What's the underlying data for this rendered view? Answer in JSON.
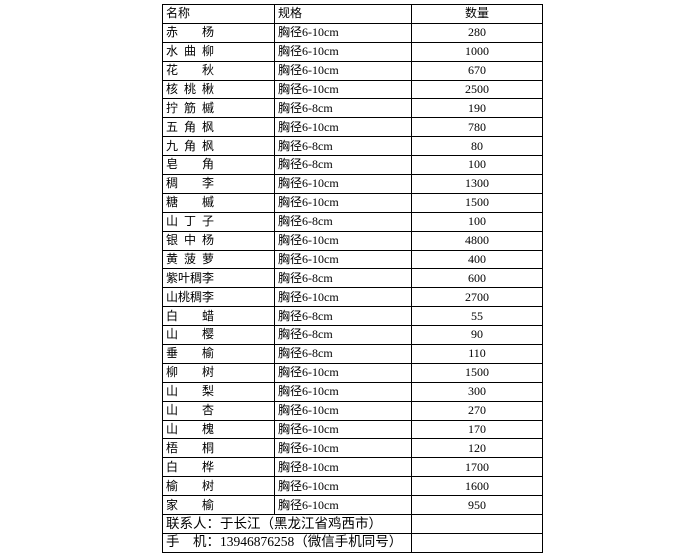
{
  "table": {
    "headers": {
      "name": "名称",
      "spec": "规格",
      "qty": "数量"
    },
    "rows": [
      {
        "name": "赤 杨",
        "spec": "胸径6-10cm",
        "qty": "280"
      },
      {
        "name": "水 曲 柳",
        "spec": "胸径6-10cm",
        "qty": "1000"
      },
      {
        "name": "花 秋",
        "spec": "胸径6-10cm",
        "qty": "670"
      },
      {
        "name": "核 桃 楸",
        "spec": "胸径6-10cm",
        "qty": "2500"
      },
      {
        "name": "拧 筋 槭",
        "spec": "胸径6-8cm",
        "qty": "190"
      },
      {
        "name": "五 角 枫",
        "spec": "胸径6-10cm",
        "qty": "780"
      },
      {
        "name": "九 角 枫",
        "spec": "胸径6-8cm",
        "qty": "80"
      },
      {
        "name": "皂 角",
        "spec": "胸径6-8cm",
        "qty": "100"
      },
      {
        "name": "稠 李",
        "spec": "胸径6-10cm",
        "qty": "1300"
      },
      {
        "name": "糖 槭",
        "spec": "胸径6-10cm",
        "qty": "1500"
      },
      {
        "name": "山 丁 子",
        "spec": "胸径6-8cm",
        "qty": "100"
      },
      {
        "name": "银 中 杨",
        "spec": "胸径6-10cm",
        "qty": "4800"
      },
      {
        "name": "黄 菠 萝",
        "spec": "胸径6-10cm",
        "qty": "400"
      },
      {
        "name": "紫叶稠李",
        "spec": "胸径6-8cm",
        "qty": "600"
      },
      {
        "name": "山桃稠李",
        "spec": "胸径6-10cm",
        "qty": "2700"
      },
      {
        "name": "白 蜡",
        "spec": "胸径6-8cm",
        "qty": "55"
      },
      {
        "name": "山 樱",
        "spec": "胸径6-8cm",
        "qty": "90"
      },
      {
        "name": "垂 榆",
        "spec": "胸径6-8cm",
        "qty": "110"
      },
      {
        "name": "柳 树",
        "spec": "胸径6-10cm",
        "qty": "1500"
      },
      {
        "name": "山 梨",
        "spec": "胸径6-10cm",
        "qty": "300"
      },
      {
        "name": "山 杏",
        "spec": "胸径6-10cm",
        "qty": "270"
      },
      {
        "name": "山 槐",
        "spec": "胸径6-10cm",
        "qty": "170"
      },
      {
        "name": "梧 桐",
        "spec": "胸径6-10cm",
        "qty": "120"
      },
      {
        "name": "白 桦",
        "spec": "胸径8-10cm",
        "qty": "1700"
      },
      {
        "name": "榆 树",
        "spec": "胸径6-10cm",
        "qty": "1600"
      },
      {
        "name": "家 榆",
        "spec": "胸径6-10cm",
        "qty": "950"
      }
    ],
    "footer": {
      "contact": "联系人：于长江（黑龙江省鸡西市）",
      "phone": "手　机：13946876258（微信手机同号）"
    }
  },
  "colors": {
    "border": "#000000",
    "text": "#000000",
    "background": "#ffffff"
  }
}
